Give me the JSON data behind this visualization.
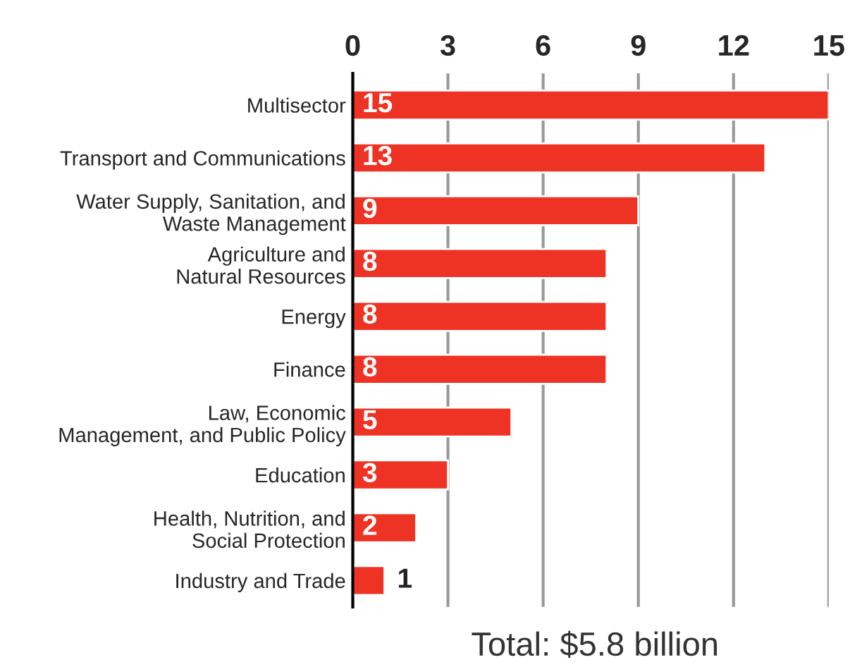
{
  "chart_data": {
    "type": "bar",
    "orientation": "horizontal",
    "categories": [
      "Multisector",
      "Transport and Communications",
      "Water Supply, Sanitation, and\nWaste Management",
      "Agriculture and\nNatural Resources",
      "Energy",
      "Finance",
      "Law, Economic\nManagement, and Public Policy",
      "Education",
      "Health, Nutrition, and\nSocial Protection",
      "Industry and Trade"
    ],
    "values": [
      15,
      13,
      9,
      8,
      8,
      8,
      5,
      3,
      2,
      1
    ],
    "color": "#ee3224",
    "data_labels": true,
    "xlim": [
      0,
      15
    ],
    "xticks": [
      0,
      3,
      6,
      9,
      12,
      15
    ],
    "grid": "x",
    "annotations": [
      "Total: $5.8 billion"
    ]
  }
}
